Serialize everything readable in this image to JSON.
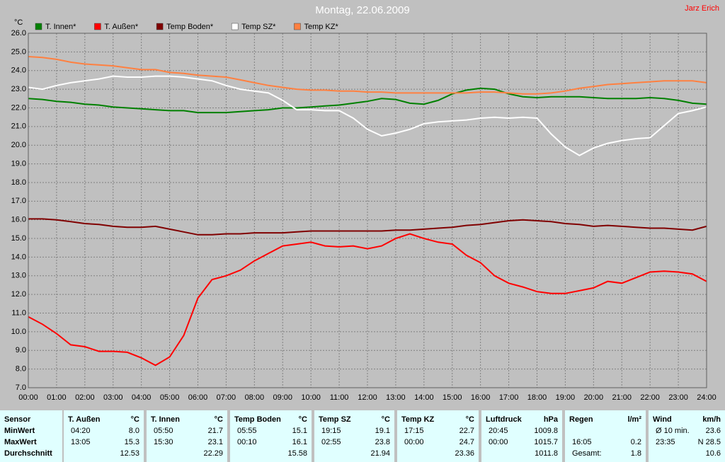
{
  "chart_data": {
    "type": "line",
    "title": "Montag, 22.06.2009",
    "subtitle": "Jarz Erich",
    "y_label": "°C",
    "x": [
      0,
      0.5,
      1,
      1.5,
      2,
      2.5,
      3,
      3.5,
      4,
      4.5,
      5,
      5.5,
      6,
      6.5,
      7,
      7.5,
      8,
      8.5,
      9,
      9.5,
      10,
      10.5,
      11,
      11.5,
      12,
      12.5,
      13,
      13.5,
      14,
      14.5,
      15,
      15.5,
      16,
      16.5,
      17,
      17.5,
      18,
      18.5,
      19,
      19.5,
      20,
      20.5,
      21,
      21.5,
      22,
      22.5,
      23,
      23.5,
      24
    ],
    "xlim": [
      0,
      24
    ],
    "xticks": [
      {
        "value": 0,
        "label": "00:00"
      },
      {
        "value": 1,
        "label": "01:00"
      },
      {
        "value": 2,
        "label": "02:00"
      },
      {
        "value": 3,
        "label": "03:00"
      },
      {
        "value": 4,
        "label": "04:00"
      },
      {
        "value": 5,
        "label": "05:00"
      },
      {
        "value": 6,
        "label": "06:00"
      },
      {
        "value": 7,
        "label": "07:00"
      },
      {
        "value": 8,
        "label": "08:00"
      },
      {
        "value": 9,
        "label": "09:00"
      },
      {
        "value": 10,
        "label": "10:00"
      },
      {
        "value": 11,
        "label": "11:00"
      },
      {
        "value": 12,
        "label": "12:00"
      },
      {
        "value": 13,
        "label": "13:00"
      },
      {
        "value": 14,
        "label": "14:00"
      },
      {
        "value": 15,
        "label": "15:00"
      },
      {
        "value": 16,
        "label": "16:00"
      },
      {
        "value": 17,
        "label": "17:00"
      },
      {
        "value": 18,
        "label": "18:00"
      },
      {
        "value": 19,
        "label": "19:00"
      },
      {
        "value": 20,
        "label": "20:00"
      },
      {
        "value": 21,
        "label": "21:00"
      },
      {
        "value": 22,
        "label": "22:00"
      },
      {
        "value": 23,
        "label": "23:00"
      },
      {
        "value": 24,
        "label": "24:00"
      }
    ],
    "ylim": [
      7,
      26
    ],
    "yticks": [
      {
        "value": 7,
        "label": "7.0"
      },
      {
        "value": 8,
        "label": "8.0"
      },
      {
        "value": 9,
        "label": "9.0"
      },
      {
        "value": 10,
        "label": "10.0"
      },
      {
        "value": 11,
        "label": "11.0"
      },
      {
        "value": 12,
        "label": "12.0"
      },
      {
        "value": 13,
        "label": "13.0"
      },
      {
        "value": 14,
        "label": "14.0"
      },
      {
        "value": 15,
        "label": "15.0"
      },
      {
        "value": 16,
        "label": "16.0"
      },
      {
        "value": 17,
        "label": "17.0"
      },
      {
        "value": 18,
        "label": "18.0"
      },
      {
        "value": 19,
        "label": "19.0"
      },
      {
        "value": 20,
        "label": "20.0"
      },
      {
        "value": 21,
        "label": "21.0"
      },
      {
        "value": 22,
        "label": "22.0"
      },
      {
        "value": 23,
        "label": "23.0"
      },
      {
        "value": 24,
        "label": "24.0"
      },
      {
        "value": 25,
        "label": "25.0"
      },
      {
        "value": 26,
        "label": "26.0"
      }
    ],
    "grid": true,
    "series": [
      {
        "name": "T. Innen*",
        "color": "#008000",
        "values": [
          22.5,
          22.45,
          22.35,
          22.3,
          22.2,
          22.15,
          22.05,
          22.0,
          21.95,
          21.9,
          21.85,
          21.85,
          21.75,
          21.75,
          21.75,
          21.8,
          21.85,
          21.9,
          22.0,
          22.0,
          22.05,
          22.1,
          22.15,
          22.25,
          22.35,
          22.5,
          22.45,
          22.25,
          22.2,
          22.4,
          22.75,
          22.95,
          23.05,
          23.0,
          22.75,
          22.6,
          22.55,
          22.6,
          22.6,
          22.6,
          22.55,
          22.5,
          22.5,
          22.5,
          22.55,
          22.5,
          22.4,
          22.25,
          22.2
        ]
      },
      {
        "name": "T. Außen*",
        "color": "#ff0000",
        "values": [
          10.8,
          10.4,
          9.9,
          9.3,
          9.2,
          8.95,
          8.95,
          8.9,
          8.6,
          8.2,
          8.65,
          9.8,
          11.8,
          12.8,
          13.0,
          13.3,
          13.8,
          14.2,
          14.6,
          14.7,
          14.8,
          14.6,
          14.55,
          14.6,
          14.45,
          14.6,
          15.0,
          15.25,
          15.0,
          14.8,
          14.7,
          14.1,
          13.7,
          13.0,
          12.6,
          12.4,
          12.15,
          12.05,
          12.05,
          12.2,
          12.35,
          12.7,
          12.6,
          12.9,
          13.2,
          13.25,
          13.2,
          13.1,
          12.7
        ]
      },
      {
        "name": "Temp Boden*",
        "color": "#800000",
        "values": [
          16.05,
          16.05,
          16.0,
          15.9,
          15.8,
          15.75,
          15.65,
          15.6,
          15.6,
          15.65,
          15.5,
          15.35,
          15.2,
          15.2,
          15.25,
          15.25,
          15.3,
          15.3,
          15.3,
          15.35,
          15.4,
          15.4,
          15.4,
          15.4,
          15.4,
          15.4,
          15.45,
          15.45,
          15.5,
          15.55,
          15.6,
          15.7,
          15.75,
          15.85,
          15.95,
          16.0,
          15.95,
          15.9,
          15.8,
          15.75,
          15.65,
          15.7,
          15.65,
          15.6,
          15.55,
          15.55,
          15.5,
          15.45,
          15.65
        ]
      },
      {
        "name": "Temp SZ*",
        "color": "#ffffff",
        "values": [
          23.1,
          23.0,
          23.2,
          23.35,
          23.45,
          23.55,
          23.7,
          23.65,
          23.65,
          23.7,
          23.7,
          23.65,
          23.55,
          23.45,
          23.2,
          23.0,
          22.9,
          22.8,
          22.4,
          21.9,
          21.9,
          21.85,
          21.85,
          21.45,
          20.85,
          20.5,
          20.65,
          20.85,
          21.15,
          21.25,
          21.3,
          21.35,
          21.45,
          21.5,
          21.45,
          21.5,
          21.45,
          20.6,
          19.9,
          19.45,
          19.85,
          20.1,
          20.25,
          20.35,
          20.4,
          21.05,
          21.7,
          21.85,
          22.05
        ]
      },
      {
        "name": "Temp KZ*",
        "color": "#ff8040",
        "values": [
          24.75,
          24.7,
          24.6,
          24.45,
          24.35,
          24.3,
          24.25,
          24.15,
          24.05,
          24.05,
          23.9,
          23.85,
          23.75,
          23.7,
          23.65,
          23.5,
          23.35,
          23.2,
          23.1,
          23.0,
          22.95,
          22.95,
          22.9,
          22.9,
          22.85,
          22.85,
          22.8,
          22.8,
          22.8,
          22.8,
          22.8,
          22.8,
          22.85,
          22.85,
          22.8,
          22.75,
          22.75,
          22.8,
          22.9,
          23.05,
          23.15,
          23.25,
          23.3,
          23.35,
          23.4,
          23.45,
          23.45,
          23.45,
          23.35
        ]
      }
    ]
  },
  "table": {
    "header_label": "Sensor",
    "columns": [
      {
        "name": "T. Außen",
        "unit": "°C"
      },
      {
        "name": "T. Innen",
        "unit": "°C"
      },
      {
        "name": "Temp Boden",
        "unit": "°C"
      },
      {
        "name": "Temp SZ",
        "unit": "°C"
      },
      {
        "name": "Temp KZ",
        "unit": "°C"
      },
      {
        "name": "Luftdruck",
        "unit": "hPa"
      },
      {
        "name": "Regen",
        "unit": "l/m²"
      },
      {
        "name": "Wind",
        "unit": "km/h"
      }
    ],
    "rows": [
      {
        "label": "MinWert",
        "cells": [
          [
            "04:20",
            "8.0"
          ],
          [
            "05:50",
            "21.7"
          ],
          [
            "05:55",
            "15.1"
          ],
          [
            "19:15",
            "19.1"
          ],
          [
            "17:15",
            "22.7"
          ],
          [
            "20:45",
            "1009.8"
          ],
          null,
          [
            "Ø 10 min.",
            "23.6"
          ]
        ]
      },
      {
        "label": "MaxWert",
        "cells": [
          [
            "13:05",
            "15.3"
          ],
          [
            "15:30",
            "23.1"
          ],
          [
            "00:10",
            "16.1"
          ],
          [
            "02:55",
            "23.8"
          ],
          [
            "00:00",
            "24.7"
          ],
          [
            "00:00",
            "1015.7"
          ],
          [
            "16:05",
            "0.2"
          ],
          [
            "23:35",
            "N 28.5"
          ]
        ]
      },
      {
        "label": "Durchschnitt",
        "cells": [
          [
            null,
            "12.53"
          ],
          [
            null,
            "22.29"
          ],
          [
            null,
            "15.58"
          ],
          [
            null,
            "21.94"
          ],
          [
            null,
            "23.36"
          ],
          [
            null,
            "1011.8"
          ],
          [
            "Gesamt:",
            "1.8"
          ],
          [
            null,
            "10.6"
          ]
        ]
      }
    ]
  }
}
